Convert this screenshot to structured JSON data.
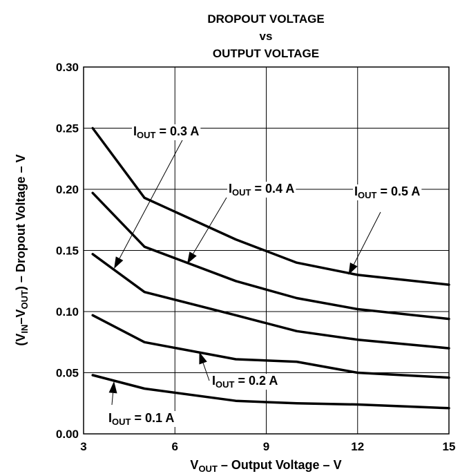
{
  "chart_data": {
    "type": "line",
    "title_lines": [
      "DROPOUT VOLTAGE",
      "vs",
      "OUTPUT VOLTAGE"
    ],
    "xlabel": {
      "main": "V",
      "sub": "OUT",
      "rest": " – Output Voltage – V"
    },
    "ylabel": {
      "p1": "(V",
      "s1": "IN",
      "p2": "–V",
      "s2": "OUT",
      "p3": ") – Dropout Voltage – V"
    },
    "xlim": [
      3,
      15
    ],
    "ylim": [
      0,
      0.3
    ],
    "x_ticks": [
      3,
      6,
      9,
      12,
      15
    ],
    "x_tick_labels": [
      "3",
      "6",
      "9",
      "12",
      "15"
    ],
    "y_ticks": [
      0,
      0.05,
      0.1,
      0.15,
      0.2,
      0.25,
      0.3
    ],
    "y_tick_labels": [
      "0.00",
      "0.05",
      "0.10",
      "0.15",
      "0.20",
      "0.25",
      "0.30"
    ],
    "grid": true,
    "series": [
      {
        "name": "IOUT = 0.1 A",
        "label_main": "I",
        "label_sub": "OUT",
        "label_rest": " = 0.1 A",
        "x": [
          3.3,
          5,
          8,
          10,
          12,
          15
        ],
        "y": [
          0.048,
          0.037,
          0.027,
          0.025,
          0.024,
          0.021
        ]
      },
      {
        "name": "IOUT = 0.2 A",
        "label_main": "I",
        "label_sub": "OUT",
        "label_rest": " = 0.2 A",
        "x": [
          3.3,
          5,
          8,
          10,
          12,
          15
        ],
        "y": [
          0.097,
          0.075,
          0.061,
          0.059,
          0.05,
          0.046
        ]
      },
      {
        "name": "IOUT = 0.3 A",
        "label_main": "I",
        "label_sub": "OUT",
        "label_rest": " = 0.3 A",
        "x": [
          3.3,
          5,
          8,
          10,
          12,
          15
        ],
        "y": [
          0.147,
          0.116,
          0.097,
          0.084,
          0.077,
          0.07
        ]
      },
      {
        "name": "IOUT = 0.4 A",
        "label_main": "I",
        "label_sub": "OUT",
        "label_rest": " = 0.4 A",
        "x": [
          3.3,
          5,
          8,
          10,
          12,
          15
        ],
        "y": [
          0.197,
          0.153,
          0.125,
          0.111,
          0.102,
          0.094
        ]
      },
      {
        "name": "IOUT = 0.5 A",
        "label_main": "I",
        "label_sub": "OUT",
        "label_rest": " = 0.5 A",
        "x": [
          3.3,
          5,
          8,
          10,
          12,
          15
        ],
        "y": [
          0.25,
          0.193,
          0.159,
          0.14,
          0.13,
          0.122
        ]
      }
    ]
  }
}
